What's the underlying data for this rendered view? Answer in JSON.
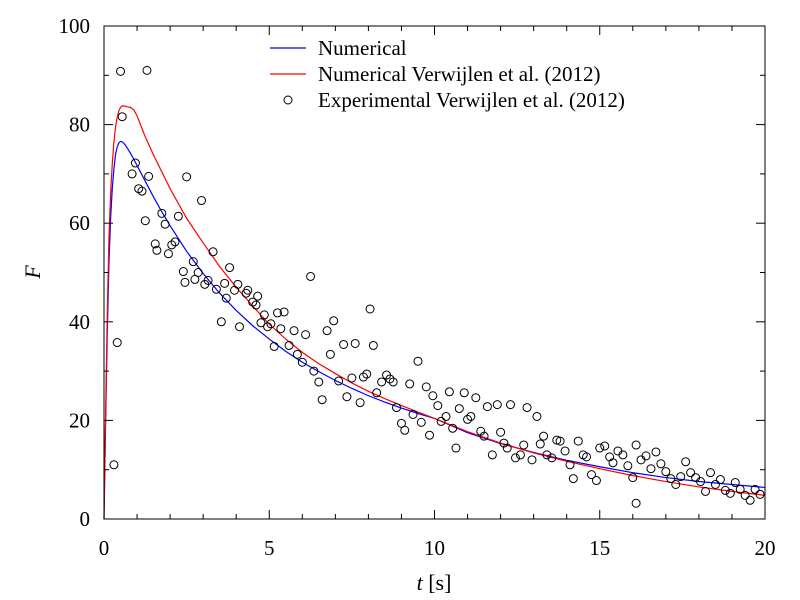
{
  "chart_data": {
    "type": "line",
    "xlabel": {
      "var": "t",
      "unit": " [s]"
    },
    "ylabel": "F",
    "xlim": [
      0,
      20
    ],
    "ylim": [
      0,
      100
    ],
    "xticks": [
      "0",
      "5",
      "10",
      "15",
      "20"
    ],
    "yticks": [
      "0",
      "20",
      "40",
      "60",
      "80",
      "100"
    ],
    "grid": false,
    "legend_position": "top-center",
    "series": [
      {
        "name": "Numerical",
        "kind": "line",
        "color": "#0000ff",
        "x": [
          0,
          0.05,
          0.1,
          0.15,
          0.2,
          0.25,
          0.3,
          0.35,
          0.4,
          0.45,
          0.5,
          0.55,
          0.6,
          0.65,
          0.7,
          0.8,
          0.9,
          1.0,
          1.25,
          1.5,
          1.75,
          2.0,
          2.5,
          3.0,
          3.5,
          4.0,
          4.5,
          5.0,
          5.5,
          6.0,
          6.5,
          7.0,
          7.5,
          8.0,
          8.5,
          9.0,
          9.5,
          10.0,
          11,
          12,
          13,
          14,
          15,
          16,
          17,
          18,
          19,
          20
        ],
        "y": [
          0,
          20,
          38,
          52,
          61,
          67,
          71,
          74,
          75.5,
          76.3,
          76.6,
          76.5,
          76.2,
          75.8,
          75.3,
          74.2,
          73.0,
          71.7,
          68.5,
          65.3,
          62.3,
          59.5,
          54.3,
          49.8,
          45.8,
          42.3,
          39.2,
          36.5,
          34.0,
          31.8,
          29.9,
          28.1,
          26.5,
          25.0,
          23.7,
          22.5,
          21.4,
          20.4,
          17.5,
          15.3,
          13.5,
          11.9,
          10.6,
          9.4,
          8.4,
          7.6,
          7.0,
          6.4
        ]
      },
      {
        "name": "Numerical Verwijlen et al. (2012)",
        "kind": "line",
        "color": "#ff0000",
        "x": [
          0,
          0.05,
          0.1,
          0.15,
          0.2,
          0.25,
          0.3,
          0.35,
          0.4,
          0.45,
          0.5,
          0.55,
          0.6,
          0.65,
          0.7,
          0.8,
          0.9,
          1.0,
          1.25,
          1.5,
          2.0,
          2.5,
          3.0,
          3.5,
          4.0,
          4.5,
          5.0,
          5.5,
          6.0,
          6.5,
          7.0,
          7.5,
          8.0,
          8.5,
          9.0,
          9.5,
          10.0,
          11,
          12,
          13,
          14,
          15,
          16,
          17,
          18,
          19,
          20
        ],
        "y": [
          0,
          22,
          42,
          57,
          66,
          72,
          76.5,
          79.5,
          81.5,
          82.8,
          83.5,
          83.8,
          83.8,
          83.7,
          83.6,
          83.5,
          83.0,
          81.8,
          77.5,
          73.8,
          67.0,
          61.0,
          56.0,
          51.2,
          47.0,
          43.2,
          39.5,
          36.5,
          33.8,
          31.5,
          29.5,
          27.6,
          25.9,
          24.4,
          23.0,
          21.7,
          20.4,
          17.7,
          15.4,
          13.4,
          11.7,
          10.2,
          8.8,
          7.6,
          6.5,
          5.6,
          4.8
        ]
      },
      {
        "name": "Experimental Verwijlen et al. (2012)",
        "kind": "scatter",
        "color": "#000000",
        "x": [
          0.3,
          0.4,
          0.5,
          0.55,
          0.85,
          0.95,
          1.05,
          1.15,
          1.25,
          1.3,
          1.35,
          1.55,
          1.6,
          1.75,
          1.85,
          1.95,
          2.05,
          2.15,
          2.25,
          2.4,
          2.45,
          2.5,
          2.7,
          2.75,
          2.85,
          2.95,
          3.05,
          3.15,
          3.3,
          3.4,
          3.55,
          3.65,
          3.7,
          3.8,
          3.95,
          4.05,
          4.1,
          4.3,
          4.35,
          4.5,
          4.6,
          4.65,
          4.75,
          4.85,
          4.95,
          5.05,
          5.15,
          5.25,
          5.35,
          5.45,
          5.6,
          5.75,
          5.85,
          6.0,
          6.1,
          6.25,
          6.35,
          6.5,
          6.6,
          6.75,
          6.85,
          6.95,
          7.1,
          7.25,
          7.35,
          7.5,
          7.6,
          7.75,
          7.85,
          7.95,
          8.05,
          8.15,
          8.25,
          8.4,
          8.55,
          8.65,
          8.75,
          8.85,
          9.0,
          9.1,
          9.25,
          9.35,
          9.5,
          9.6,
          9.75,
          9.85,
          9.95,
          10.1,
          10.2,
          10.35,
          10.45,
          10.55,
          10.65,
          10.75,
          10.9,
          11.0,
          11.1,
          11.25,
          11.4,
          11.5,
          11.6,
          11.75,
          11.9,
          12.0,
          12.1,
          12.2,
          12.3,
          12.45,
          12.6,
          12.7,
          12.8,
          12.95,
          13.1,
          13.2,
          13.3,
          13.4,
          13.55,
          13.7,
          13.8,
          13.95,
          14.1,
          14.2,
          14.35,
          14.5,
          14.6,
          14.75,
          14.9,
          15.0,
          15.15,
          15.3,
          15.4,
          15.55,
          15.7,
          15.85,
          16.0,
          16.1,
          16.25,
          16.4,
          16.55,
          16.7,
          16.85,
          17.0,
          17.15,
          17.3,
          17.45,
          17.6,
          17.75,
          17.9,
          18.05,
          18.2,
          18.35,
          18.5,
          18.65,
          18.8,
          18.95,
          19.1,
          19.25,
          19.4,
          19.55,
          19.7,
          19.85,
          16.1
        ],
        "y": [
          11,
          35.8,
          90.8,
          81.6,
          70,
          72.2,
          67,
          66.5,
          60.5,
          91,
          69.5,
          55.8,
          54.5,
          62,
          59.8,
          53.8,
          55.6,
          56.2,
          61.4,
          50.2,
          48.0,
          69.4,
          52.2,
          48.6,
          50.0,
          64.6,
          47.6,
          48.4,
          54.2,
          46.6,
          40.0,
          47.8,
          44.8,
          51.0,
          46.4,
          47.6,
          39.0,
          45.8,
          46.4,
          44.0,
          43.4,
          45.2,
          39.8,
          41.4,
          39.0,
          39.6,
          35.0,
          41.8,
          38.6,
          42.0,
          35.2,
          38.2,
          33.4,
          31.8,
          37.4,
          49.2,
          30.0,
          27.8,
          24.2,
          38.2,
          33.4,
          40.2,
          28.0,
          35.4,
          24.8,
          28.6,
          35.6,
          23.6,
          28.8,
          29.4,
          42.6,
          35.2,
          25.6,
          27.8,
          29.2,
          28.4,
          27.8,
          22.6,
          19.4,
          18.0,
          27.4,
          21.2,
          32.0,
          19.6,
          26.8,
          17.0,
          25.0,
          23.0,
          19.8,
          20.8,
          25.8,
          18.4,
          14.4,
          22.4,
          25.6,
          20.2,
          20.8,
          24.6,
          17.8,
          16.8,
          22.8,
          13.0,
          23.2,
          17.6,
          15.4,
          14.4,
          23.2,
          12.4,
          13.0,
          15.0,
          22.6,
          12.0,
          20.8,
          15.2,
          16.8,
          13.0,
          12.4,
          16.0,
          15.8,
          13.8,
          11.0,
          8.2,
          15.8,
          13.0,
          12.6,
          9.0,
          7.8,
          14.4,
          14.8,
          12.6,
          11.4,
          13.8,
          13.0,
          10.8,
          8.4,
          15.0,
          12.0,
          12.8,
          10.2,
          13.6,
          11.2,
          9.6,
          8.2,
          7.0,
          8.6,
          11.6,
          9.4,
          8.4,
          7.6,
          5.6,
          9.4,
          7.0,
          8.0,
          5.8,
          5.2,
          7.4,
          6.0,
          4.8,
          3.8,
          6.0,
          5.0,
          3.2
        ]
      }
    ]
  }
}
